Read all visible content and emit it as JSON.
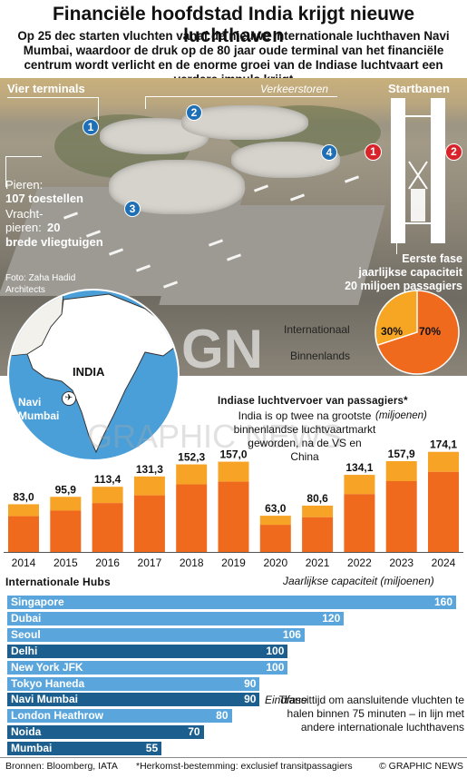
{
  "title": "Financiële hoofdstad India krijgt nieuwe luchthaven",
  "intro": "Op 25 dec starten vluchten vanaf de nieuwe internationale luchthaven Navi Mumbai, waardoor de druk op de 80 jaar oude terminal van het financiële centrum wordt verlicht en de enorme groei van de Indiase luchtvaart een verdere impuls krijgt",
  "photo": {
    "terminals_label": "Vier terminals",
    "tower_label": "Verkeerstoren",
    "runways_label": "Startbanen",
    "terminal_numbers": [
      "1",
      "2",
      "3",
      "4"
    ],
    "runway_numbers": [
      "1",
      "2"
    ],
    "piers_label": "Pieren:",
    "piers_value": "107 toestellen",
    "cargo_label_1": "Vracht-",
    "cargo_label_2": "pieren:",
    "cargo_value_num": "20",
    "cargo_value_text": "brede vliegtuigen",
    "credit_1": "Foto: Zaha Hadid",
    "credit_2": "Architects",
    "phase_title": "Eerste fase",
    "phase_line2": "jaarlijkse capaciteit",
    "phase_line3": "20 miljoen passagiers"
  },
  "map": {
    "country": "INDIA",
    "city_1": "Navi",
    "city_2": "Mumbai",
    "plane_icon": "plane-icon"
  },
  "pie": {
    "international_label": "Internationaal",
    "domestic_label": "Binnenlands",
    "international_pct": "30%",
    "domestic_pct": "70%",
    "international_value": 30,
    "domestic_value": 70,
    "colors": {
      "international": "#f6a623",
      "domestic": "#ef6a1c"
    }
  },
  "watermark": {
    "logo": "GN",
    "text": "GRAPHIC NEWS"
  },
  "chart_data": [
    {
      "type": "bar",
      "title": "Indiase luchtvervoer van passagiers*",
      "ylabel": "(miljoenen)",
      "note": "India is op twee na grootste binnenlandse luchtvaartmarkt geworden, na de VS en China",
      "categories": [
        "2014",
        "2015",
        "2016",
        "2017",
        "2018",
        "2019",
        "2020",
        "2021",
        "2022",
        "2023",
        "2024"
      ],
      "values": [
        83.0,
        95.9,
        113.4,
        131.3,
        152.3,
        157.0,
        63.0,
        80.6,
        134.1,
        157.9,
        174.1
      ],
      "value_labels": [
        "83,0",
        "95,9",
        "113,4",
        "131,3",
        "152,3",
        "157,0",
        "63,0",
        "80,6",
        "134,1",
        "157,9",
        "174,1"
      ],
      "ylim": [
        0,
        180
      ],
      "colors": {
        "dark": "#ef6a1c",
        "light": "#f7a325"
      }
    },
    {
      "type": "bar",
      "orientation": "horizontal",
      "title": "Internationale Hubs",
      "ylabel": "Jaarlijkse capaciteit (miljoenen)",
      "categories": [
        "Singapore",
        "Dubai",
        "Seoul",
        "Delhi",
        "New York JFK",
        "Tokyo Haneda",
        "Navi Mumbai",
        "London Heathrow",
        "Noida",
        "Mumbai"
      ],
      "values": [
        160,
        120,
        106,
        100,
        100,
        90,
        90,
        80,
        70,
        55
      ],
      "value_labels": [
        "160",
        "120",
        "106",
        "100",
        "100",
        "90",
        "90",
        "80",
        "70",
        "55"
      ],
      "xlim": [
        0,
        160
      ],
      "colors": [
        "#5aa6dc",
        "#5aa6dc",
        "#5aa6dc",
        "#1c5f8f",
        "#5aa6dc",
        "#5aa6dc",
        "#1c5f8f",
        "#5aa6dc",
        "#1c5f8f",
        "#1c5f8f"
      ]
    }
  ],
  "hubs_note": {
    "eindfase": "Eindfase",
    "transit": "Transittijd om aansluitende vluchten te halen binnen 75 minuten – in lijn met andere internationale luchthavens"
  },
  "footer": {
    "sources": "Bronnen: Bloomberg, IATA",
    "footnote": "*Herkomst-bestemming: exclusief transitpassagiers",
    "credit": "© GRAPHIC NEWS"
  }
}
